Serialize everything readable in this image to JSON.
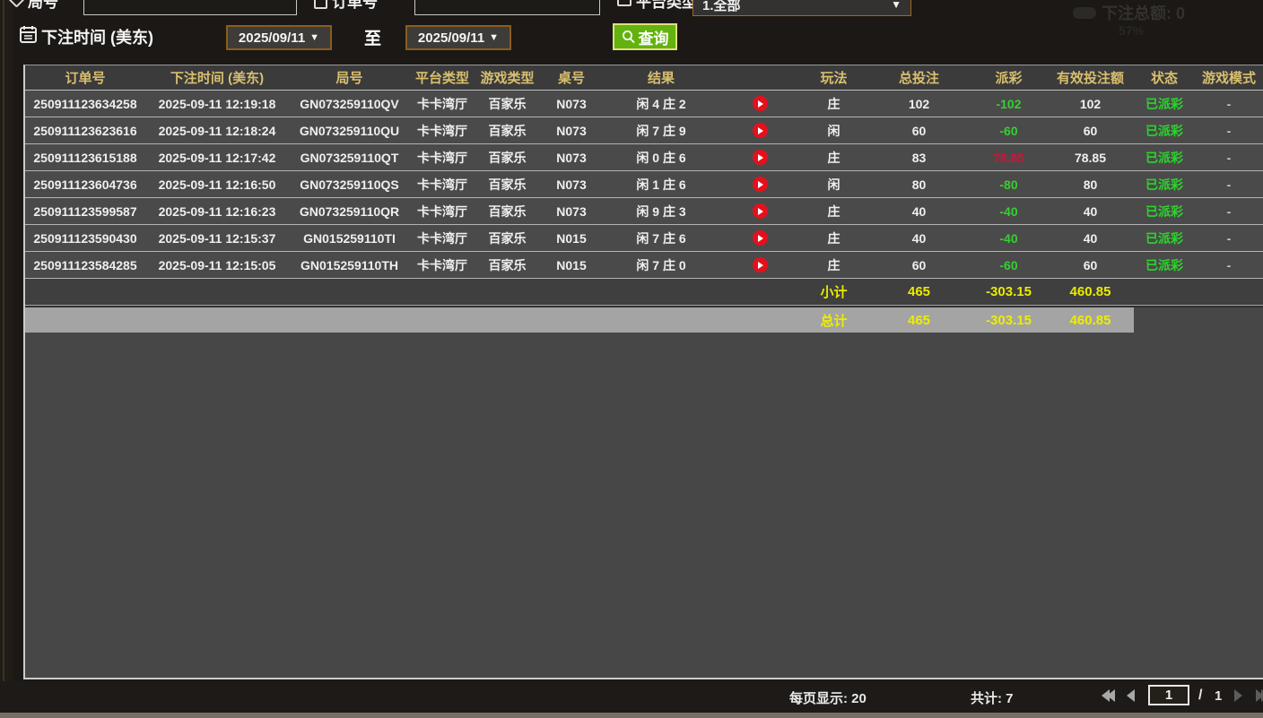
{
  "filters": {
    "round_label": "局号",
    "round_value": "",
    "order_label": "订单号",
    "order_value": "",
    "platform_label": "平台类型",
    "platform_value": "1.全部",
    "bet_time_label": "下注时间 (美东)",
    "date_from": "2025/09/11",
    "date_to": "2025/09/11",
    "to_label": "至",
    "query_label": "查询"
  },
  "background_overlay": {
    "total_bet_text": "下注总额: 0",
    "percent_text": "57%"
  },
  "table": {
    "columns": [
      "订单号",
      "下注时间 (美东)",
      "局号",
      "平台类型",
      "游戏类型",
      "桌号",
      "结果",
      "",
      "玩法",
      "总投注",
      "派彩",
      "有效投注额",
      "状态",
      "游戏模式"
    ],
    "rows": [
      {
        "order_no": "250911123634258",
        "bet_time": "2025-09-11 12:19:18",
        "round_no": "GN073259110QV",
        "platform": "卡卡湾厅",
        "game_type": "百家乐",
        "table_no": "N073",
        "result": "闲 4 庄 2",
        "play_method": "庄",
        "total_bet": "102",
        "payout": "-102",
        "valid_bet": "102",
        "status": "已派彩",
        "game_mode": "-"
      },
      {
        "order_no": "250911123623616",
        "bet_time": "2025-09-11 12:18:24",
        "round_no": "GN073259110QU",
        "platform": "卡卡湾厅",
        "game_type": "百家乐",
        "table_no": "N073",
        "result": "闲 7 庄 9",
        "play_method": "闲",
        "total_bet": "60",
        "payout": "-60",
        "valid_bet": "60",
        "status": "已派彩",
        "game_mode": "-"
      },
      {
        "order_no": "250911123615188",
        "bet_time": "2025-09-11 12:17:42",
        "round_no": "GN073259110QT",
        "platform": "卡卡湾厅",
        "game_type": "百家乐",
        "table_no": "N073",
        "result": "闲 0 庄 6",
        "play_method": "庄",
        "total_bet": "83",
        "payout": "78.85",
        "valid_bet": "78.85",
        "status": "已派彩",
        "game_mode": "-"
      },
      {
        "order_no": "250911123604736",
        "bet_time": "2025-09-11 12:16:50",
        "round_no": "GN073259110QS",
        "platform": "卡卡湾厅",
        "game_type": "百家乐",
        "table_no": "N073",
        "result": "闲 1 庄 6",
        "play_method": "闲",
        "total_bet": "80",
        "payout": "-80",
        "valid_bet": "80",
        "status": "已派彩",
        "game_mode": "-"
      },
      {
        "order_no": "250911123599587",
        "bet_time": "2025-09-11 12:16:23",
        "round_no": "GN073259110QR",
        "platform": "卡卡湾厅",
        "game_type": "百家乐",
        "table_no": "N073",
        "result": "闲 9 庄 3",
        "play_method": "庄",
        "total_bet": "40",
        "payout": "-40",
        "valid_bet": "40",
        "status": "已派彩",
        "game_mode": "-"
      },
      {
        "order_no": "250911123590430",
        "bet_time": "2025-09-11 12:15:37",
        "round_no": "GN015259110TI",
        "platform": "卡卡湾厅",
        "game_type": "百家乐",
        "table_no": "N015",
        "result": "闲 7 庄 6",
        "play_method": "庄",
        "total_bet": "40",
        "payout": "-40",
        "valid_bet": "40",
        "status": "已派彩",
        "game_mode": "-"
      },
      {
        "order_no": "250911123584285",
        "bet_time": "2025-09-11 12:15:05",
        "round_no": "GN015259110TH",
        "platform": "卡卡湾厅",
        "game_type": "百家乐",
        "table_no": "N015",
        "result": "闲 7 庄 0",
        "play_method": "庄",
        "total_bet": "60",
        "payout": "-60",
        "valid_bet": "60",
        "status": "已派彩",
        "game_mode": "-"
      }
    ],
    "subtotal": {
      "label": "小计",
      "total_bet": "465",
      "payout": "-303.15",
      "valid_bet": "460.85"
    },
    "total": {
      "label": "总计",
      "total_bet": "465",
      "payout": "-303.15",
      "valid_bet": "460.85"
    }
  },
  "pagination": {
    "per_page_label": "每页显示: 20",
    "total_label": "共计: 7",
    "current_page": "1",
    "separator": "/",
    "total_pages": "1"
  },
  "colors": {
    "header_text": "#d9bf6f",
    "payout_negative": "#35d02f",
    "payout_positive": "#cf1437",
    "status_paid": "#2bd42b",
    "summary_yellow": "#eaea00",
    "query_button_bg": "#63b20f",
    "date_border": "#8a5c1e",
    "play_icon_red": "#e6101d",
    "total_band_bg": "#a4a4a4"
  }
}
